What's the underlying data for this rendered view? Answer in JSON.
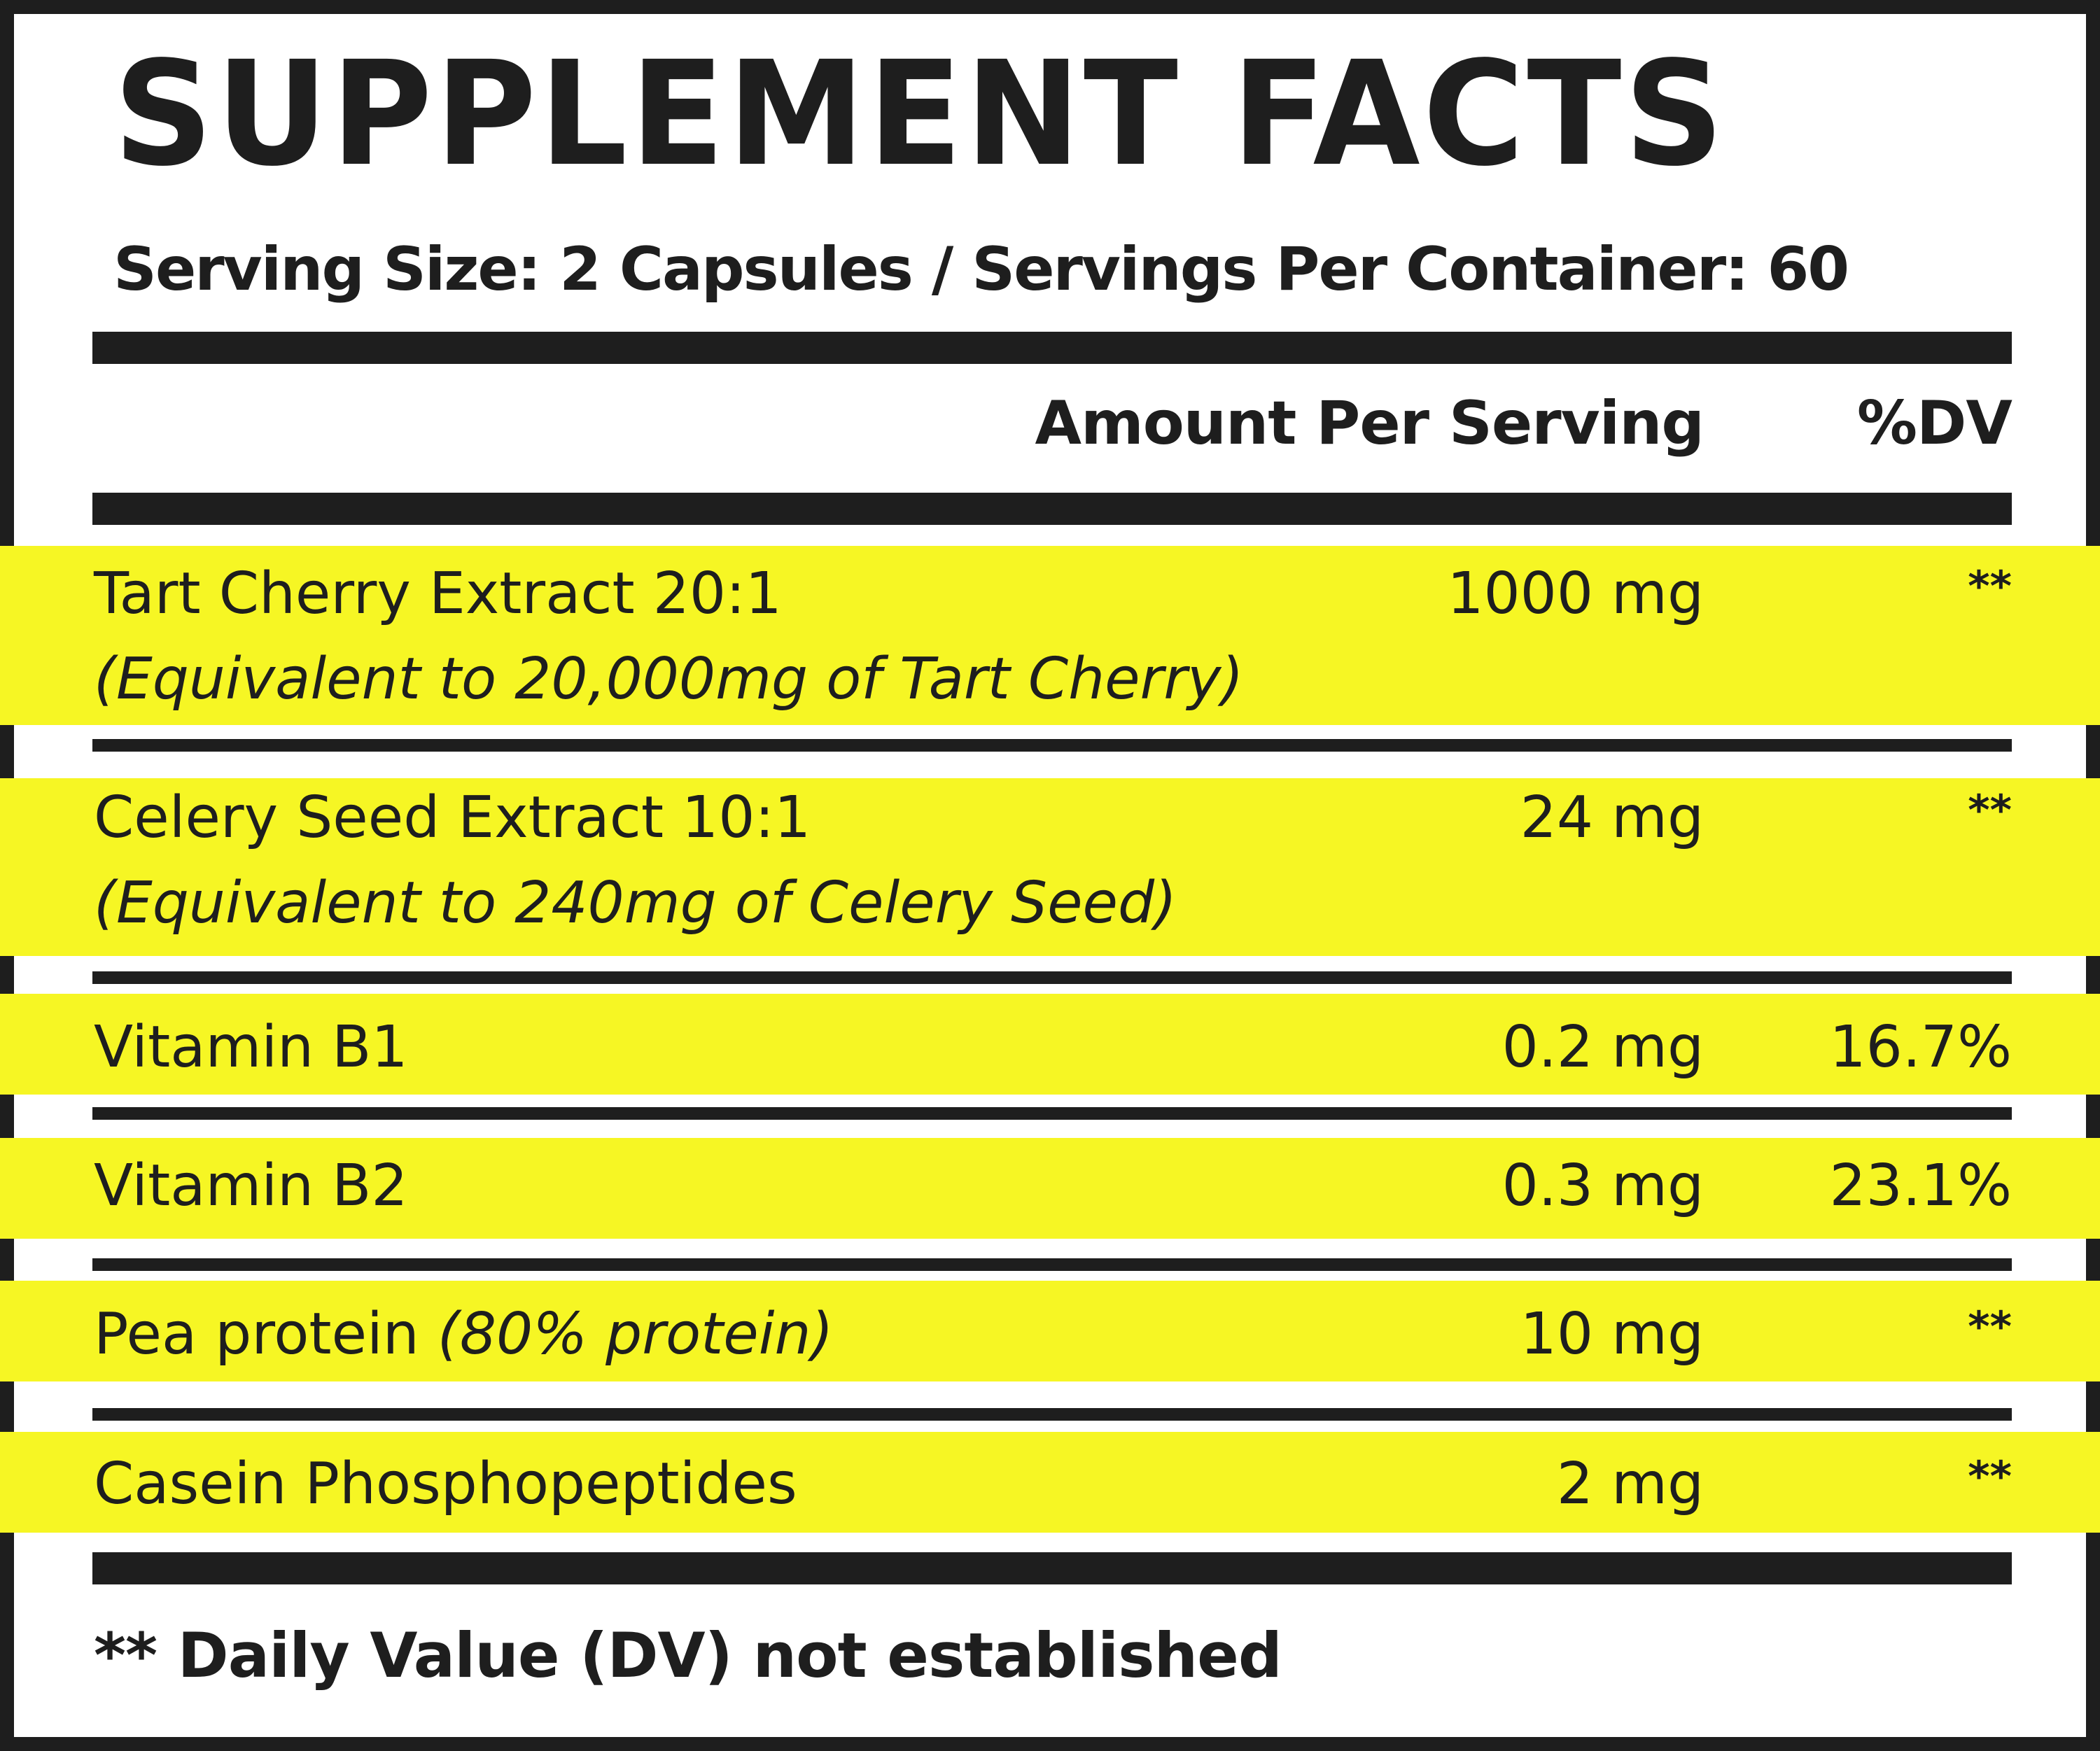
{
  "label": {
    "title": "SUPPLEMENT FACTS",
    "serving_line": "Serving Size: 2 Capsules / Servings Per Container: 60",
    "col_amount": "Amount Per Serving",
    "col_dv": "%DV",
    "highlight_color": "#f6f624",
    "ink_color": "#1e1e1e",
    "rows": [
      {
        "name": "Tart Cherry Extract 20:1",
        "sub": "(Equivalent to 20,000mg of Tart Cherry)",
        "amount": "1000 mg",
        "dv": "**"
      },
      {
        "name": "Celery Seed Extract 10:1",
        "sub": "(Equivalent to 240mg of Celery Seed)",
        "amount": "24 mg",
        "dv": "**"
      },
      {
        "name": "Vitamin B1",
        "amount": "0.2 mg",
        "dv": "16.7%"
      },
      {
        "name": "Vitamin B2",
        "amount": "0.3 mg",
        "dv": "23.1%"
      },
      {
        "name": "Pea protein",
        "name_note": "(80% protein)",
        "amount": "10 mg",
        "dv": "**"
      },
      {
        "name": "Casein Phosphopeptides",
        "amount": "2 mg",
        "dv": "**"
      }
    ],
    "footnote": "** Daily Value (DV) not established"
  }
}
